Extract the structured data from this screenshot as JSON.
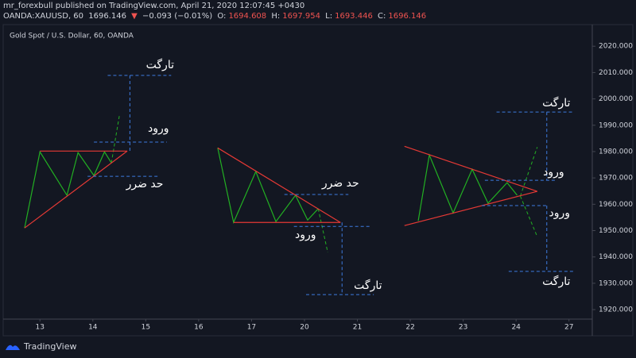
{
  "header": {
    "author_line": "mr_forexbull published on TradingView.com, April 21, 2020 12:07:45 +0430",
    "symbol": "OANDA:XAUUSD, 60",
    "last": "1696.146",
    "change_arrow": "▼",
    "change": "−0.093 (−0.01%)",
    "ohlc": [
      {
        "label": "O:",
        "value": "1694.608"
      },
      {
        "label": "H:",
        "value": "1697.954"
      },
      {
        "label": "L:",
        "value": "1693.446"
      },
      {
        "label": "C:",
        "value": "1696.146"
      }
    ]
  },
  "chart_data": {
    "type": "line",
    "title": "Gold Spot / U.S. Dollar, 60, OANDA",
    "xlim": [
      -0.68,
      10.44
    ],
    "ylim": [
      1917,
      2027
    ],
    "xticks": [
      {
        "value": 0,
        "label": "13"
      },
      {
        "value": 1,
        "label": "14"
      },
      {
        "value": 2,
        "label": "15"
      },
      {
        "value": 3,
        "label": "16"
      },
      {
        "value": 4,
        "label": "17"
      },
      {
        "value": 5,
        "label": "20"
      },
      {
        "value": 6,
        "label": "21"
      },
      {
        "value": 7,
        "label": "22"
      },
      {
        "value": 8,
        "label": "23"
      },
      {
        "value": 9,
        "label": "24"
      },
      {
        "value": 10,
        "label": "27"
      }
    ],
    "yticks": [
      {
        "value": 1920,
        "label": "1920.000"
      },
      {
        "value": 1930,
        "label": "1930.000"
      },
      {
        "value": 1940,
        "label": "1940.000"
      },
      {
        "value": 1950,
        "label": "1950.000"
      },
      {
        "value": 1960,
        "label": "1960.000"
      },
      {
        "value": 1970,
        "label": "1970.000"
      },
      {
        "value": 1980,
        "label": "1980.000"
      },
      {
        "value": 1990,
        "label": "1990.000"
      },
      {
        "value": 2000,
        "label": "2000.000"
      },
      {
        "value": 2010,
        "label": "2010.000"
      },
      {
        "value": 2020,
        "label": "2020.000"
      }
    ],
    "drawings": [
      {
        "color": "#22b022",
        "dashed": false,
        "x": [
          -0.29,
          0,
          0.51,
          0.72,
          1.02,
          1.22,
          1.35
        ],
        "y": [
          1951.0,
          1979.9,
          1963.4,
          1979.6,
          1970.9,
          1979.9,
          1975.7
        ]
      },
      {
        "color": "#22b022",
        "dashed": true,
        "x": [
          1.35,
          1.5
        ],
        "y": [
          1975.7,
          1993.5
        ]
      },
      {
        "color": "#e53935",
        "dashed": false,
        "x": [
          0,
          1.65
        ],
        "y": [
          1980.2,
          1980.2
        ]
      },
      {
        "color": "#e53935",
        "dashed": false,
        "x": [
          -0.29,
          1.65
        ],
        "y": [
          1951.0,
          1980.2
        ]
      },
      {
        "color": "#3d7be0",
        "dashed": true,
        "x": [
          1.28,
          2.48
        ],
        "y": [
          2008.9,
          2008.9
        ]
      },
      {
        "color": "#3d7be0",
        "dashed": true,
        "x": [
          1.02,
          2.4
        ],
        "y": [
          1983.6,
          1983.6
        ]
      },
      {
        "color": "#3d7be0",
        "dashed": true,
        "x": [
          0.9,
          2.25
        ],
        "y": [
          1970.6,
          1970.6
        ]
      },
      {
        "color": "#3d7be0",
        "dashed": true,
        "x": [
          1.7,
          1.7
        ],
        "y": [
          2008.9,
          1980.2
        ]
      },
      {
        "color": "#22b022",
        "dashed": false,
        "x": [
          3.36,
          3.66,
          4.08,
          4.46,
          4.83,
          5.06,
          5.26
        ],
        "y": [
          1981.4,
          1953.1,
          1972.4,
          1953.4,
          1963.4,
          1954.0,
          1958.3
        ]
      },
      {
        "color": "#22b022",
        "dashed": true,
        "x": [
          5.26,
          5.44
        ],
        "y": [
          1958.3,
          1941.7
        ]
      },
      {
        "color": "#e53935",
        "dashed": false,
        "x": [
          3.36,
          5.68
        ],
        "y": [
          1981.4,
          1953.1
        ]
      },
      {
        "color": "#e53935",
        "dashed": false,
        "x": [
          3.66,
          5.68
        ],
        "y": [
          1953.1,
          1953.1
        ]
      },
      {
        "color": "#3d7be0",
        "dashed": true,
        "x": [
          4.62,
          5.83
        ],
        "y": [
          1963.7,
          1963.7
        ]
      },
      {
        "color": "#3d7be0",
        "dashed": true,
        "x": [
          4.8,
          6.23
        ],
        "y": [
          1951.6,
          1951.6
        ]
      },
      {
        "color": "#3d7be0",
        "dashed": true,
        "x": [
          5.03,
          6.31
        ],
        "y": [
          1925.7,
          1925.7
        ]
      },
      {
        "color": "#3d7be0",
        "dashed": true,
        "x": [
          5.71,
          5.71
        ],
        "y": [
          1953.1,
          1925.7
        ]
      },
      {
        "color": "#22b022",
        "dashed": false,
        "x": [
          7.15,
          7.36,
          7.81,
          8.17,
          8.47,
          8.83,
          9.02
        ],
        "y": [
          1953.7,
          1978.7,
          1956.7,
          1973.3,
          1960.4,
          1968.2,
          1963.4
        ]
      },
      {
        "color": "#22b022",
        "dashed": true,
        "x": [
          9.08,
          9.4
        ],
        "y": [
          1963.1,
          1981.7
        ]
      },
      {
        "color": "#22b022",
        "dashed": true,
        "x": [
          9.08,
          9.4
        ],
        "y": [
          1963.1,
          1947.7
        ]
      },
      {
        "color": "#e53935",
        "dashed": false,
        "x": [
          6.89,
          9.4
        ],
        "y": [
          1982.0,
          1964.9
        ]
      },
      {
        "color": "#e53935",
        "dashed": false,
        "x": [
          6.89,
          9.4
        ],
        "y": [
          1951.9,
          1964.9
        ]
      },
      {
        "color": "#3d7be0",
        "dashed": true,
        "x": [
          8.63,
          10.09
        ],
        "y": [
          1995.0,
          1995.0
        ]
      },
      {
        "color": "#3d7be0",
        "dashed": true,
        "x": [
          8.41,
          9.76
        ],
        "y": [
          1969.1,
          1969.1
        ]
      },
      {
        "color": "#3d7be0",
        "dashed": true,
        "x": [
          8.35,
          9.61
        ],
        "y": [
          1959.5,
          1959.5
        ]
      },
      {
        "color": "#3d7be0",
        "dashed": true,
        "x": [
          8.86,
          10.09
        ],
        "y": [
          1934.5,
          1934.5
        ]
      },
      {
        "color": "#3d7be0",
        "dashed": true,
        "x": [
          9.58,
          9.58
        ],
        "y": [
          1995.0,
          1969.1
        ]
      },
      {
        "color": "#3d7be0",
        "dashed": true,
        "x": [
          9.58,
          9.58
        ],
        "y": [
          1959.5,
          1934.5
        ]
      }
    ],
    "annotations": [
      {
        "text": "تارگت",
        "x": 2.27,
        "y": 2012.8
      },
      {
        "text": "ورود",
        "x": 2.24,
        "y": 1988.7
      },
      {
        "text": "حد ضرر",
        "x": 1.98,
        "y": 1967.6
      },
      {
        "text": "حد ضرر",
        "x": 5.68,
        "y": 1967.9
      },
      {
        "text": "ورود",
        "x": 5.02,
        "y": 1948.3
      },
      {
        "text": "تارگت",
        "x": 6.2,
        "y": 1929.0
      },
      {
        "text": "تارگت",
        "x": 9.76,
        "y": 1998.3
      },
      {
        "text": "ورود",
        "x": 9.71,
        "y": 1972.1
      },
      {
        "text": "ورود",
        "x": 9.82,
        "y": 1956.7
      },
      {
        "text": "تارگت",
        "x": 9.76,
        "y": 1930.5
      }
    ]
  },
  "footer": {
    "brand": "TradingView"
  }
}
